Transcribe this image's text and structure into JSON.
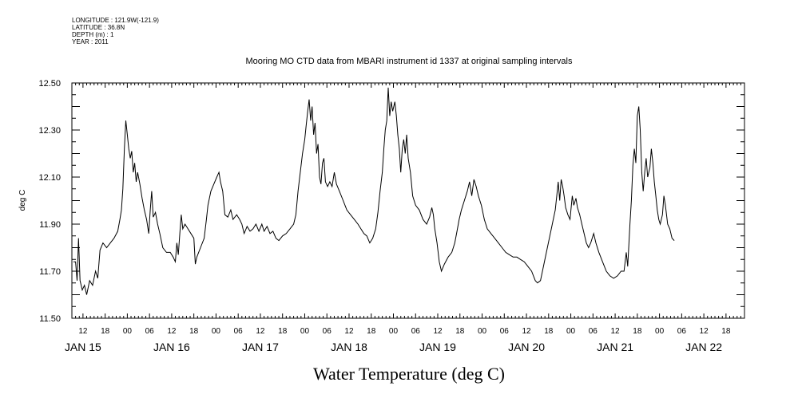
{
  "header": {
    "longitude": "LONGITUDE : 121.9W(-121.9)",
    "latitude": "LATITUDE : 36.8N",
    "depth": "DEPTH (m) : 1",
    "year": "YEAR : 2011"
  },
  "chart_data": {
    "type": "line",
    "title": "Mooring MO CTD data from MBARI instrument id 1337 at original sampling intervals",
    "ylabel": "deg C",
    "bottom_title": "Water Temperature (deg C)",
    "ylim": [
      11.5,
      12.5
    ],
    "xlim_hours": [
      -15,
      167
    ],
    "y_ticks": [
      "11.50",
      "11.70",
      "11.90",
      "12.10",
      "12.30",
      "12.50"
    ],
    "x_hour_ticks": [
      {
        "label": "12",
        "h": -12
      },
      {
        "label": "18",
        "h": -6
      },
      {
        "label": "00",
        "h": 0
      },
      {
        "label": "06",
        "h": 6
      },
      {
        "label": "12",
        "h": 12
      },
      {
        "label": "18",
        "h": 18
      },
      {
        "label": "00",
        "h": 24
      },
      {
        "label": "06",
        "h": 30
      },
      {
        "label": "12",
        "h": 36
      },
      {
        "label": "18",
        "h": 42
      },
      {
        "label": "00",
        "h": 48
      },
      {
        "label": "06",
        "h": 54
      },
      {
        "label": "12",
        "h": 60
      },
      {
        "label": "18",
        "h": 66
      },
      {
        "label": "00",
        "h": 72
      },
      {
        "label": "06",
        "h": 78
      },
      {
        "label": "12",
        "h": 84
      },
      {
        "label": "18",
        "h": 90
      },
      {
        "label": "00",
        "h": 96
      },
      {
        "label": "06",
        "h": 102
      },
      {
        "label": "12",
        "h": 108
      },
      {
        "label": "18",
        "h": 114
      },
      {
        "label": "00",
        "h": 120
      },
      {
        "label": "06",
        "h": 126
      },
      {
        "label": "12",
        "h": 132
      },
      {
        "label": "18",
        "h": 138
      },
      {
        "label": "00",
        "h": 144
      },
      {
        "label": "06",
        "h": 150
      },
      {
        "label": "12",
        "h": 156
      },
      {
        "label": "18",
        "h": 162
      }
    ],
    "x_day_labels": [
      {
        "label": "JAN 15",
        "h": -12
      },
      {
        "label": "JAN 16",
        "h": 12
      },
      {
        "label": "JAN 17",
        "h": 36
      },
      {
        "label": "JAN 18",
        "h": 60
      },
      {
        "label": "JAN 19",
        "h": 84
      },
      {
        "label": "JAN 20",
        "h": 108
      },
      {
        "label": "JAN 21",
        "h": 132
      },
      {
        "label": "JAN 22",
        "h": 156
      }
    ],
    "series": [
      {
        "points": [
          [
            -14.6,
            11.74
          ],
          [
            -14.0,
            11.74
          ],
          [
            -13.6,
            11.66
          ],
          [
            -13.2,
            11.84
          ],
          [
            -12.8,
            11.66
          ],
          [
            -12.2,
            11.62
          ],
          [
            -11.6,
            11.64
          ],
          [
            -11.0,
            11.6
          ],
          [
            -10.2,
            11.66
          ],
          [
            -9.4,
            11.64
          ],
          [
            -8.6,
            11.7
          ],
          [
            -8.0,
            11.67
          ],
          [
            -7.4,
            11.79
          ],
          [
            -6.6,
            11.82
          ],
          [
            -5.6,
            11.8
          ],
          [
            -4.6,
            11.82
          ],
          [
            -3.6,
            11.84
          ],
          [
            -2.6,
            11.87
          ],
          [
            -2.0,
            11.92
          ],
          [
            -1.6,
            11.96
          ],
          [
            -1.2,
            12.05
          ],
          [
            -0.8,
            12.22
          ],
          [
            -0.4,
            12.34
          ],
          [
            0.0,
            12.28
          ],
          [
            0.4,
            12.22
          ],
          [
            0.8,
            12.18
          ],
          [
            1.2,
            12.21
          ],
          [
            1.6,
            12.12
          ],
          [
            2.0,
            12.16
          ],
          [
            2.4,
            12.08
          ],
          [
            2.8,
            12.12
          ],
          [
            3.4,
            12.07
          ],
          [
            4.0,
            12.01
          ],
          [
            4.6,
            11.96
          ],
          [
            5.2,
            11.92
          ],
          [
            5.8,
            11.86
          ],
          [
            6.2,
            11.96
          ],
          [
            6.6,
            12.04
          ],
          [
            7.0,
            11.93
          ],
          [
            7.6,
            11.95
          ],
          [
            8.2,
            11.9
          ],
          [
            8.8,
            11.86
          ],
          [
            9.6,
            11.8
          ],
          [
            10.6,
            11.78
          ],
          [
            11.6,
            11.78
          ],
          [
            12.4,
            11.76
          ],
          [
            13.0,
            11.74
          ],
          [
            13.4,
            11.82
          ],
          [
            13.8,
            11.77
          ],
          [
            14.2,
            11.86
          ],
          [
            14.6,
            11.94
          ],
          [
            15.0,
            11.88
          ],
          [
            15.6,
            11.9
          ],
          [
            16.4,
            11.88
          ],
          [
            17.2,
            11.86
          ],
          [
            18.0,
            11.84
          ],
          [
            18.4,
            11.73
          ],
          [
            18.8,
            11.76
          ],
          [
            19.8,
            11.8
          ],
          [
            20.8,
            11.84
          ],
          [
            21.4,
            11.92
          ],
          [
            21.8,
            11.98
          ],
          [
            22.6,
            12.04
          ],
          [
            23.4,
            12.07
          ],
          [
            24.2,
            12.1
          ],
          [
            24.8,
            12.12
          ],
          [
            25.2,
            12.08
          ],
          [
            25.8,
            12.04
          ],
          [
            26.4,
            11.94
          ],
          [
            27.2,
            11.93
          ],
          [
            28.0,
            11.96
          ],
          [
            28.6,
            11.92
          ],
          [
            29.6,
            11.94
          ],
          [
            30.4,
            11.92
          ],
          [
            31.0,
            11.9
          ],
          [
            31.6,
            11.86
          ],
          [
            32.4,
            11.89
          ],
          [
            33.2,
            11.87
          ],
          [
            34.0,
            11.88
          ],
          [
            34.8,
            11.9
          ],
          [
            35.6,
            11.87
          ],
          [
            36.4,
            11.9
          ],
          [
            37.0,
            11.87
          ],
          [
            37.8,
            11.89
          ],
          [
            38.6,
            11.86
          ],
          [
            39.4,
            11.87
          ],
          [
            40.2,
            11.84
          ],
          [
            41.0,
            11.83
          ],
          [
            42.0,
            11.85
          ],
          [
            43.0,
            11.86
          ],
          [
            44.0,
            11.88
          ],
          [
            45.0,
            11.9
          ],
          [
            45.6,
            11.94
          ],
          [
            46.2,
            12.04
          ],
          [
            46.8,
            12.12
          ],
          [
            47.4,
            12.2
          ],
          [
            48.0,
            12.26
          ],
          [
            48.4,
            12.32
          ],
          [
            48.8,
            12.38
          ],
          [
            49.2,
            12.43
          ],
          [
            49.6,
            12.34
          ],
          [
            50.0,
            12.4
          ],
          [
            50.4,
            12.28
          ],
          [
            50.8,
            12.33
          ],
          [
            51.2,
            12.2
          ],
          [
            51.6,
            12.24
          ],
          [
            52.0,
            12.1
          ],
          [
            52.4,
            12.07
          ],
          [
            52.8,
            12.16
          ],
          [
            53.2,
            12.18
          ],
          [
            53.6,
            12.08
          ],
          [
            54.2,
            12.06
          ],
          [
            54.8,
            12.08
          ],
          [
            55.4,
            12.06
          ],
          [
            56.0,
            12.12
          ],
          [
            56.6,
            12.07
          ],
          [
            57.4,
            12.04
          ],
          [
            58.4,
            12.0
          ],
          [
            59.4,
            11.96
          ],
          [
            60.4,
            11.94
          ],
          [
            61.4,
            11.92
          ],
          [
            62.4,
            11.9
          ],
          [
            63.2,
            11.88
          ],
          [
            64.0,
            11.86
          ],
          [
            64.8,
            11.85
          ],
          [
            65.6,
            11.82
          ],
          [
            66.4,
            11.84
          ],
          [
            67.2,
            11.88
          ],
          [
            67.8,
            11.95
          ],
          [
            68.4,
            12.04
          ],
          [
            69.0,
            12.12
          ],
          [
            69.4,
            12.22
          ],
          [
            69.8,
            12.3
          ],
          [
            70.2,
            12.34
          ],
          [
            70.6,
            12.48
          ],
          [
            71.0,
            12.36
          ],
          [
            71.4,
            12.42
          ],
          [
            71.8,
            12.38
          ],
          [
            72.4,
            12.42
          ],
          [
            72.8,
            12.36
          ],
          [
            73.2,
            12.28
          ],
          [
            73.6,
            12.22
          ],
          [
            74.0,
            12.12
          ],
          [
            74.4,
            12.22
          ],
          [
            74.8,
            12.26
          ],
          [
            75.2,
            12.2
          ],
          [
            75.6,
            12.28
          ],
          [
            76.0,
            12.18
          ],
          [
            76.6,
            12.12
          ],
          [
            77.2,
            12.02
          ],
          [
            78.0,
            11.98
          ],
          [
            79.0,
            11.96
          ],
          [
            80.0,
            11.92
          ],
          [
            81.0,
            11.9
          ],
          [
            81.8,
            11.93
          ],
          [
            82.4,
            11.97
          ],
          [
            82.8,
            11.94
          ],
          [
            83.2,
            11.88
          ],
          [
            83.8,
            11.82
          ],
          [
            84.4,
            11.74
          ],
          [
            85.0,
            11.7
          ],
          [
            85.8,
            11.73
          ],
          [
            86.8,
            11.76
          ],
          [
            87.8,
            11.78
          ],
          [
            88.6,
            11.82
          ],
          [
            89.2,
            11.87
          ],
          [
            89.8,
            11.92
          ],
          [
            90.4,
            11.96
          ],
          [
            91.2,
            12.0
          ],
          [
            92.0,
            12.04
          ],
          [
            92.6,
            12.08
          ],
          [
            93.2,
            12.02
          ],
          [
            93.8,
            12.09
          ],
          [
            94.4,
            12.06
          ],
          [
            95.0,
            12.02
          ],
          [
            95.8,
            11.98
          ],
          [
            96.6,
            11.92
          ],
          [
            97.4,
            11.88
          ],
          [
            98.4,
            11.86
          ],
          [
            99.4,
            11.84
          ],
          [
            100.4,
            11.82
          ],
          [
            101.4,
            11.8
          ],
          [
            102.4,
            11.78
          ],
          [
            103.4,
            11.77
          ],
          [
            104.4,
            11.76
          ],
          [
            105.4,
            11.76
          ],
          [
            106.4,
            11.75
          ],
          [
            107.4,
            11.74
          ],
          [
            108.4,
            11.72
          ],
          [
            109.4,
            11.7
          ],
          [
            110.4,
            11.66
          ],
          [
            111.0,
            11.65
          ],
          [
            111.8,
            11.66
          ],
          [
            112.6,
            11.72
          ],
          [
            113.4,
            11.78
          ],
          [
            114.2,
            11.84
          ],
          [
            115.0,
            11.9
          ],
          [
            115.8,
            11.96
          ],
          [
            116.2,
            12.02
          ],
          [
            116.6,
            12.08
          ],
          [
            117.0,
            12.0
          ],
          [
            117.4,
            12.09
          ],
          [
            117.8,
            12.06
          ],
          [
            118.2,
            12.02
          ],
          [
            118.6,
            11.97
          ],
          [
            119.2,
            11.94
          ],
          [
            119.8,
            11.92
          ],
          [
            120.4,
            12.02
          ],
          [
            120.8,
            11.98
          ],
          [
            121.4,
            12.01
          ],
          [
            121.8,
            11.97
          ],
          [
            122.4,
            11.94
          ],
          [
            123.0,
            11.9
          ],
          [
            123.6,
            11.86
          ],
          [
            124.2,
            11.82
          ],
          [
            124.8,
            11.8
          ],
          [
            125.4,
            11.82
          ],
          [
            126.2,
            11.86
          ],
          [
            126.8,
            11.82
          ],
          [
            127.6,
            11.78
          ],
          [
            128.6,
            11.74
          ],
          [
            129.6,
            11.7
          ],
          [
            130.6,
            11.68
          ],
          [
            131.6,
            11.67
          ],
          [
            132.6,
            11.68
          ],
          [
            133.6,
            11.7
          ],
          [
            134.4,
            11.7
          ],
          [
            135.0,
            11.78
          ],
          [
            135.4,
            11.72
          ],
          [
            136.0,
            11.9
          ],
          [
            136.4,
            12.0
          ],
          [
            136.8,
            12.15
          ],
          [
            137.2,
            12.22
          ],
          [
            137.6,
            12.16
          ],
          [
            138.0,
            12.36
          ],
          [
            138.4,
            12.4
          ],
          [
            138.8,
            12.3
          ],
          [
            139.2,
            12.12
          ],
          [
            139.6,
            12.04
          ],
          [
            140.0,
            12.12
          ],
          [
            140.4,
            12.18
          ],
          [
            140.8,
            12.1
          ],
          [
            141.4,
            12.14
          ],
          [
            141.8,
            12.22
          ],
          [
            142.2,
            12.16
          ],
          [
            142.6,
            12.08
          ],
          [
            143.0,
            12.02
          ],
          [
            143.4,
            11.96
          ],
          [
            143.8,
            11.92
          ],
          [
            144.2,
            11.9
          ],
          [
            144.8,
            11.94
          ],
          [
            145.2,
            12.02
          ],
          [
            145.6,
            11.98
          ],
          [
            146.2,
            11.9
          ],
          [
            146.8,
            11.88
          ],
          [
            147.4,
            11.84
          ],
          [
            148.0,
            11.83
          ]
        ]
      }
    ]
  }
}
